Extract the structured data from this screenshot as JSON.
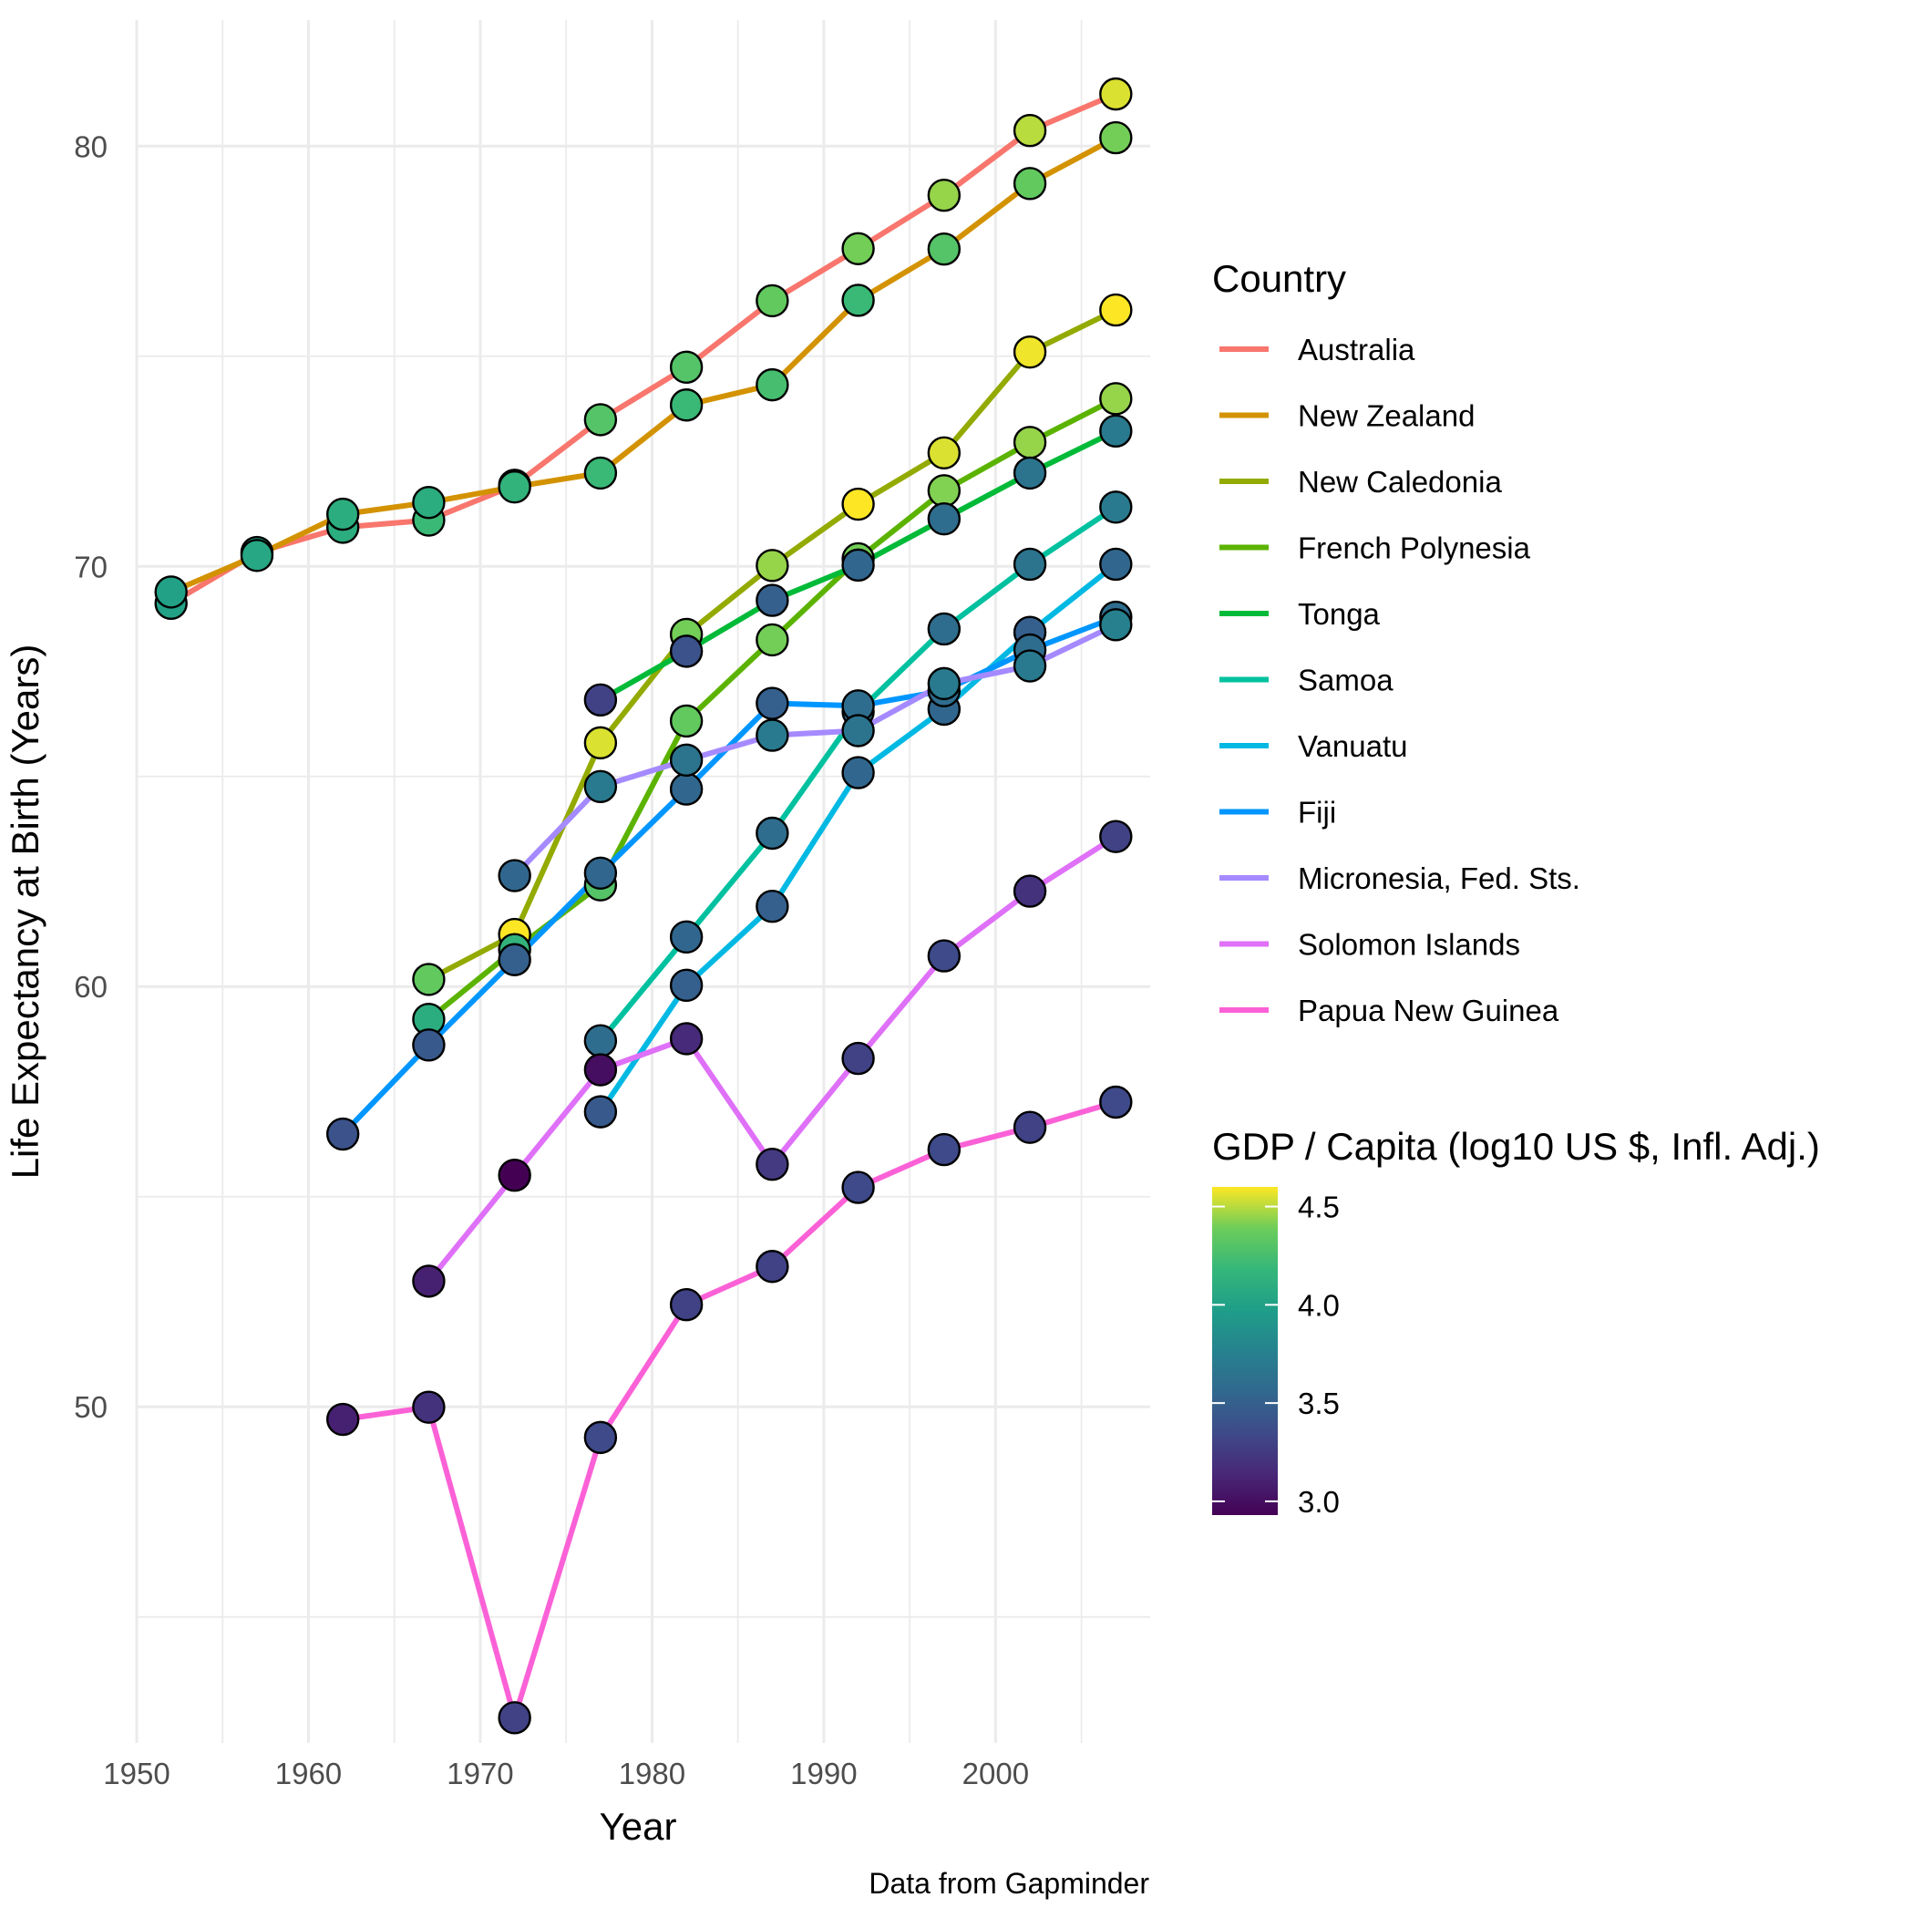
{
  "chart_data": {
    "type": "line",
    "xlabel": "Year",
    "ylabel": "Life Expectancy at Birth (Years)",
    "caption": "Data from Gapminder",
    "xlim": [
      1950,
      2009
    ],
    "ylim": [
      42,
      83
    ],
    "x_ticks": [
      1950,
      1960,
      1970,
      1980,
      1990,
      2000
    ],
    "y_ticks": [
      50,
      60,
      70,
      80
    ],
    "grid": true,
    "legend_position": "right",
    "color_legend": {
      "title": "Country",
      "entries": [
        "Australia",
        "New Zealand",
        "New Caledonia",
        "French Polynesia",
        "Tonga",
        "Samoa",
        "Vanuatu",
        "Fiji",
        "Micronesia, Fed. Sts.",
        "Solomon Islands",
        "Papua New Guinea"
      ]
    },
    "gdp_legend": {
      "title": "GDP / Capita (log10 US $, Infl. Adj.)",
      "ticks": [
        "4.5",
        "4.0",
        "3.5",
        "3.0"
      ],
      "tick_values": [
        4.5,
        4.0,
        3.5,
        3.0
      ],
      "range": [
        2.93,
        4.6
      ]
    },
    "series": [
      {
        "name": "Australia",
        "color": "#F8766D",
        "x": [
          1952,
          1957,
          1962,
          1967,
          1972,
          1977,
          1982,
          1987,
          1992,
          1997,
          2002,
          2007
        ],
        "y": [
          69.12,
          70.33,
          70.93,
          71.1,
          71.93,
          73.49,
          74.74,
          76.32,
          77.56,
          78.83,
          80.37,
          81.24
        ],
        "gdp": [
          4.0,
          4.0,
          4.1,
          4.2,
          4.2,
          4.3,
          4.3,
          4.35,
          4.4,
          4.45,
          4.5,
          4.55
        ]
      },
      {
        "name": "New Zealand",
        "color": "#D39200",
        "x": [
          1952,
          1957,
          1962,
          1967,
          1972,
          1977,
          1982,
          1987,
          1992,
          1997,
          2002,
          2007
        ],
        "y": [
          69.39,
          70.26,
          71.24,
          71.52,
          71.89,
          72.22,
          73.84,
          74.32,
          76.33,
          77.55,
          79.11,
          80.2
        ],
        "gdp": [
          4.0,
          4.05,
          4.1,
          4.1,
          4.15,
          4.2,
          4.2,
          4.25,
          4.2,
          4.3,
          4.35,
          4.4
        ]
      },
      {
        "name": "New Caledonia",
        "color": "#93AA00",
        "x": [
          1967,
          1972,
          1977,
          1982,
          1987,
          1992,
          1997,
          2002,
          2007
        ],
        "y": [
          60.17,
          61.24,
          65.8,
          68.38,
          70.02,
          71.48,
          72.7,
          75.1,
          76.1
        ],
        "gdp": [
          4.35,
          4.6,
          4.55,
          4.4,
          4.45,
          4.6,
          4.55,
          4.58,
          4.6
        ]
      },
      {
        "name": "French Polynesia",
        "color": "#5BB300",
        "x": [
          1967,
          1972,
          1977,
          1982,
          1987,
          1992,
          1997,
          2002,
          2007
        ],
        "y": [
          59.22,
          60.88,
          62.42,
          66.32,
          68.25,
          70.18,
          71.8,
          72.95,
          73.99
        ],
        "gdp": [
          4.1,
          4.15,
          4.3,
          4.35,
          4.4,
          4.4,
          4.42,
          4.45,
          4.45
        ]
      },
      {
        "name": "Tonga",
        "color": "#00BA38",
        "x": [
          1977,
          1982,
          1987,
          1992,
          1997,
          2002,
          2007
        ],
        "y": [
          66.82,
          67.98,
          69.19,
          70.03,
          71.13,
          72.22,
          73.22
        ],
        "gdp": [
          3.3,
          3.4,
          3.5,
          3.55,
          3.6,
          3.65,
          3.7
        ]
      },
      {
        "name": "Samoa",
        "color": "#00C19F",
        "x": [
          1977,
          1982,
          1987,
          1992,
          1997,
          2002,
          2007
        ],
        "y": [
          58.71,
          61.18,
          63.65,
          66.54,
          68.51,
          70.05,
          71.41
        ],
        "gdp": [
          3.6,
          3.55,
          3.6,
          3.65,
          3.6,
          3.65,
          3.7
        ]
      },
      {
        "name": "Vanuatu",
        "color": "#00B9E3",
        "x": [
          1977,
          1982,
          1987,
          1992,
          1997,
          2002,
          2007
        ],
        "y": [
          57.02,
          60.03,
          61.91,
          65.09,
          66.6,
          68.43,
          70.05
        ],
        "gdp": [
          3.45,
          3.5,
          3.5,
          3.55,
          3.55,
          3.5,
          3.55
        ]
      },
      {
        "name": "Fiji",
        "color": "#0096FF",
        "x": [
          1962,
          1967,
          1972,
          1977,
          1982,
          1987,
          1992,
          1997,
          2002,
          2007
        ],
        "y": [
          56.49,
          58.61,
          60.64,
          62.7,
          64.7,
          66.74,
          66.68,
          67.04,
          68.01,
          68.79
        ],
        "gdp": [
          3.4,
          3.45,
          3.5,
          3.55,
          3.55,
          3.5,
          3.6,
          3.6,
          3.6,
          3.6
        ]
      },
      {
        "name": "Micronesia, Fed. Sts.",
        "color": "#A58AFF",
        "x": [
          1972,
          1977,
          1982,
          1987,
          1992,
          1997,
          2002,
          2007
        ],
        "y": [
          62.64,
          64.76,
          65.39,
          65.98,
          66.09,
          67.21,
          67.63,
          68.61
        ],
        "gdp": [
          3.55,
          3.7,
          3.65,
          3.7,
          3.65,
          3.7,
          3.7,
          3.75
        ]
      },
      {
        "name": "Solomon Islands",
        "color": "#DF70F8",
        "x": [
          1967,
          1972,
          1977,
          1982,
          1987,
          1992,
          1997,
          2002,
          2007
        ],
        "y": [
          52.99,
          55.51,
          58.02,
          58.76,
          55.77,
          58.29,
          60.73,
          62.27,
          63.57
        ],
        "gdp": [
          3.1,
          2.93,
          3.0,
          3.15,
          3.25,
          3.3,
          3.35,
          3.2,
          3.3
        ]
      },
      {
        "name": "Papua New Guinea",
        "color": "#FB61D7",
        "x": [
          1962,
          1967,
          1972,
          1977,
          1982,
          1987,
          1992,
          1997,
          2002,
          2007
        ],
        "y": [
          49.7,
          49.99,
          42.6,
          49.27,
          52.43,
          53.34,
          55.22,
          56.12,
          56.65,
          57.25
        ],
        "gdp": [
          3.1,
          3.2,
          3.3,
          3.35,
          3.3,
          3.3,
          3.35,
          3.35,
          3.3,
          3.35
        ]
      }
    ]
  }
}
